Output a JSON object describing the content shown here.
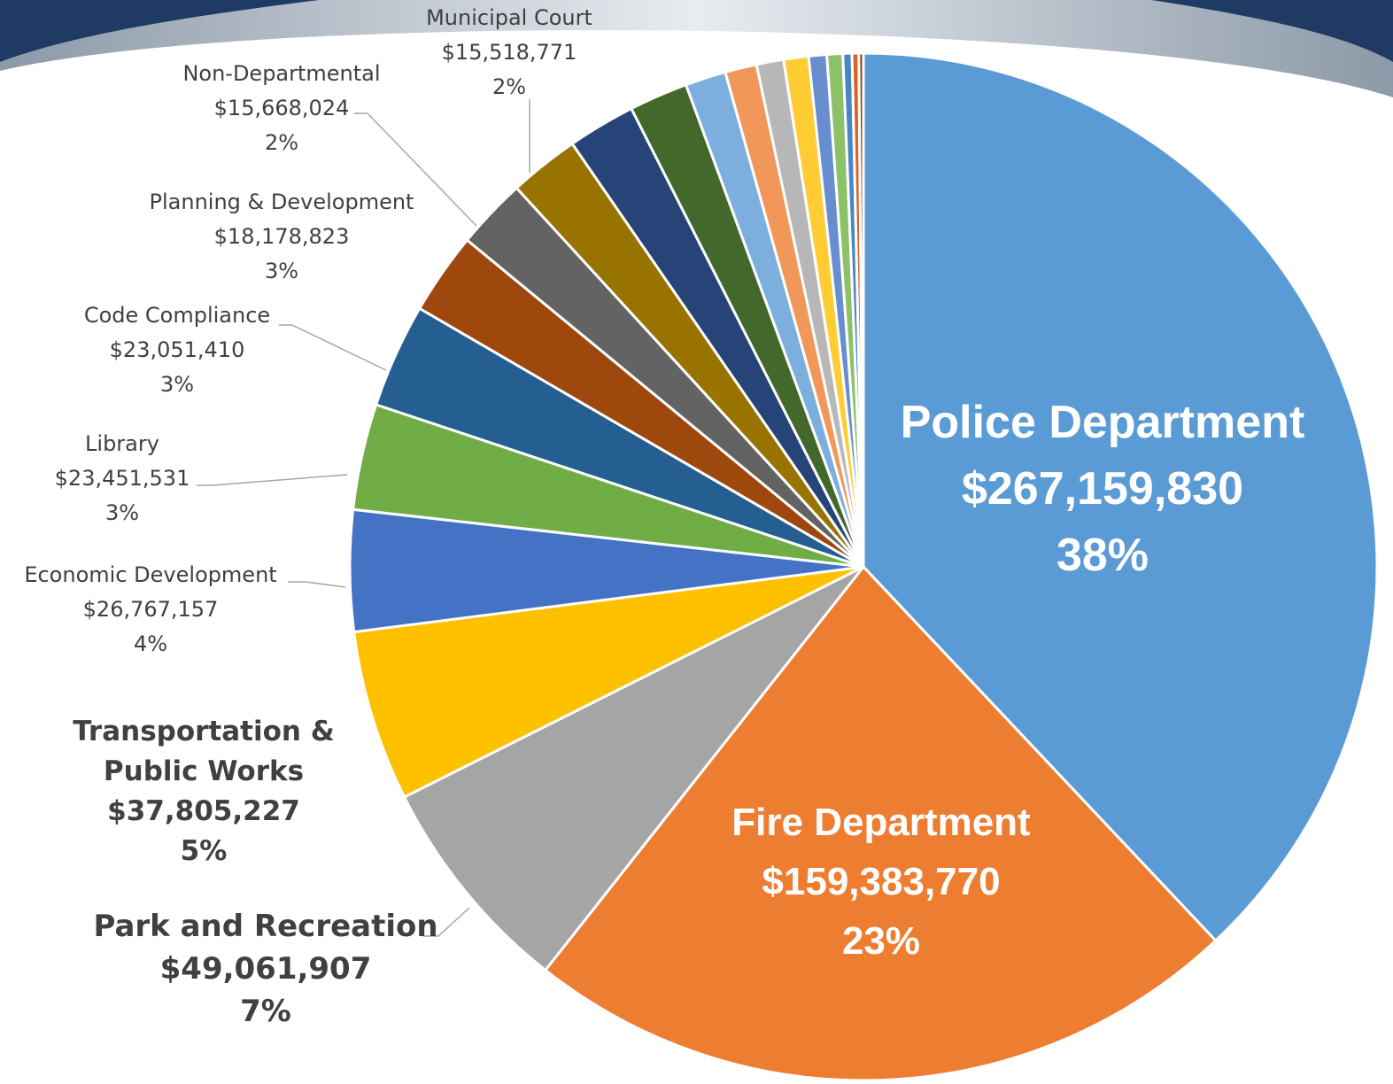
{
  "chart_data": {
    "type": "pie",
    "categories": [
      "Police Department",
      "Fire Department",
      "Park and Recreation",
      "Transportation & Public Works",
      "Economic Development",
      "Library",
      "Code Compliance",
      "Planning & Development",
      "Non-Departmental",
      "Municipal Court",
      null,
      null,
      null,
      null,
      null,
      null,
      null,
      null,
      null,
      null,
      null
    ],
    "values": [
      267159830,
      159383770,
      49061907,
      37805227,
      26767157,
      23451531,
      23051410,
      18178823,
      15668024,
      15518771,
      15000000,
      13000000,
      9000000,
      7000000,
      6000000,
      5500000,
      4000000,
      3500000,
      2000000,
      1500000,
      1000000
    ],
    "value_labels": [
      "$267,159,830",
      "$159,383,770",
      "$49,061,907",
      "$37,805,227",
      "$26,767,157",
      "$23,451,531",
      "$23,051,410",
      "$18,178,823",
      "$15,668,024",
      "$15,518,771",
      null,
      null,
      null,
      null,
      null,
      null,
      null,
      null,
      null,
      null,
      null
    ],
    "percent_labels": [
      "38%",
      "23%",
      "7%",
      "5%",
      "4%",
      "3%",
      "3%",
      "3%",
      "2%",
      "2%",
      null,
      null,
      null,
      null,
      null,
      null,
      null,
      null,
      null,
      null,
      null
    ],
    "colors": [
      "#5B9BD5",
      "#ED7D31",
      "#A5A5A5",
      "#FFC000",
      "#4472C4",
      "#70AD47",
      "#255E91",
      "#9E480E",
      "#636363",
      "#997300",
      "#264478",
      "#43682B",
      "#7CAFDD",
      "#F1975A",
      "#B7B7B7",
      "#FFCD33",
      "#698ED0",
      "#8CC168",
      "#4A86C5",
      "#D9642A",
      "#8B4513"
    ]
  }
}
